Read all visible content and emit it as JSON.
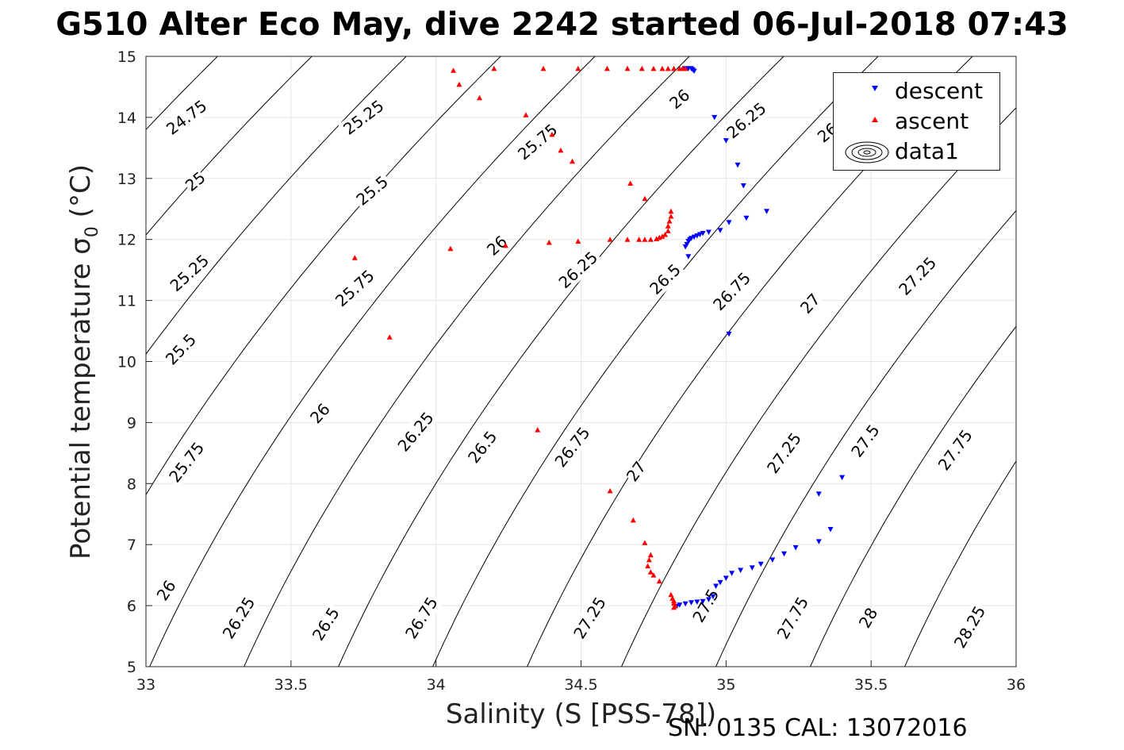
{
  "title": "G510 Alter Eco May, dive 2242 started 06-Jul-2018 07:43",
  "footer": "SN: 0135  CAL: 13072016",
  "chart_data": {
    "type": "scatter",
    "xlabel": "Salinity (S [PSS-78])",
    "ylabel": "Potential temperature",
    "ylabel_symbol": "σ",
    "ylabel_subscript": "0",
    "ylabel_unit": "(°C)",
    "xlim": [
      33,
      36
    ],
    "ylim": [
      5,
      15
    ],
    "xticks": [
      "33",
      "33.5",
      "34",
      "34.5",
      "35",
      "35.5",
      "36"
    ],
    "yticks": [
      "5",
      "6",
      "7",
      "8",
      "9",
      "10",
      "11",
      "12",
      "13",
      "14",
      "15"
    ],
    "grid": true,
    "legend_position": "top-right",
    "legend": [
      "descent",
      "ascent",
      "data1"
    ],
    "colors": {
      "descent": "#0000ff",
      "ascent": "#ff0000",
      "contour": "#000000",
      "grid": "#e6e6e6"
    },
    "contour_levels": [
      24.75,
      25,
      25.25,
      25.5,
      25.75,
      26,
      26.25,
      26.5,
      26.75,
      27,
      27.25,
      27.5,
      27.75,
      28,
      28.25
    ],
    "contour_labels": [
      {
        "text": "24.75",
        "x": 33.14,
        "y": 14.0,
        "angle": -37
      },
      {
        "text": "25.25",
        "x": 33.75,
        "y": 14.0,
        "angle": -37
      },
      {
        "text": "25",
        "x": 33.17,
        "y": 12.95,
        "angle": -40
      },
      {
        "text": "25.5",
        "x": 33.78,
        "y": 12.8,
        "angle": -40
      },
      {
        "text": "25.75",
        "x": 34.35,
        "y": 13.6,
        "angle": -40
      },
      {
        "text": "26",
        "x": 34.84,
        "y": 14.3,
        "angle": -40
      },
      {
        "text": "26.25",
        "x": 35.07,
        "y": 13.95,
        "angle": -40
      },
      {
        "text": "26",
        "x": 35.35,
        "y": 13.75,
        "angle": -40
      },
      {
        "text": "25.25",
        "x": 33.15,
        "y": 11.45,
        "angle": -42
      },
      {
        "text": "25.75",
        "x": 33.72,
        "y": 11.2,
        "angle": -42
      },
      {
        "text": "26",
        "x": 34.21,
        "y": 11.9,
        "angle": -42
      },
      {
        "text": "26.25",
        "x": 34.49,
        "y": 11.5,
        "angle": -42
      },
      {
        "text": "26.5",
        "x": 34.79,
        "y": 11.35,
        "angle": -44
      },
      {
        "text": "26.75",
        "x": 35.02,
        "y": 11.15,
        "angle": -46
      },
      {
        "text": "27",
        "x": 35.29,
        "y": 10.95,
        "angle": -48
      },
      {
        "text": "27.25",
        "x": 35.66,
        "y": 11.4,
        "angle": -46
      },
      {
        "text": "25.5",
        "x": 33.12,
        "y": 10.2,
        "angle": -46
      },
      {
        "text": "26",
        "x": 33.6,
        "y": 9.15,
        "angle": -48
      },
      {
        "text": "26.25",
        "x": 33.93,
        "y": 8.85,
        "angle": -50
      },
      {
        "text": "26.5",
        "x": 34.16,
        "y": 8.6,
        "angle": -52
      },
      {
        "text": "26.75",
        "x": 34.47,
        "y": 8.6,
        "angle": -52
      },
      {
        "text": "27",
        "x": 34.69,
        "y": 8.2,
        "angle": -54
      },
      {
        "text": "27.25",
        "x": 35.2,
        "y": 8.5,
        "angle": -54
      },
      {
        "text": "27.5",
        "x": 35.48,
        "y": 8.7,
        "angle": -54
      },
      {
        "text": "27.75",
        "x": 35.79,
        "y": 8.55,
        "angle": -54
      },
      {
        "text": "25.75",
        "x": 33.14,
        "y": 8.35,
        "angle": -52
      },
      {
        "text": "26",
        "x": 33.07,
        "y": 6.25,
        "angle": -56
      },
      {
        "text": "26.25",
        "x": 33.32,
        "y": 5.8,
        "angle": -58
      },
      {
        "text": "26.5",
        "x": 33.62,
        "y": 5.7,
        "angle": -58
      },
      {
        "text": "26.75",
        "x": 33.95,
        "y": 5.8,
        "angle": -58
      },
      {
        "text": "27.25",
        "x": 34.53,
        "y": 5.8,
        "angle": -58
      },
      {
        "text": "27.5",
        "x": 34.93,
        "y": 6.0,
        "angle": -60
      },
      {
        "text": "27.75",
        "x": 35.23,
        "y": 5.8,
        "angle": -60
      },
      {
        "text": "28",
        "x": 35.49,
        "y": 5.8,
        "angle": -60
      },
      {
        "text": "28.25",
        "x": 35.84,
        "y": 5.65,
        "angle": -60
      }
    ],
    "series": [
      {
        "name": "descent",
        "marker": "triangle-down",
        "points": [
          [
            34.86,
            14.8
          ],
          [
            34.87,
            14.8
          ],
          [
            34.88,
            14.8
          ],
          [
            34.885,
            14.78
          ],
          [
            34.89,
            14.76
          ],
          [
            34.96,
            14.0
          ],
          [
            35.0,
            13.62
          ],
          [
            35.04,
            13.22
          ],
          [
            35.06,
            12.88
          ],
          [
            35.14,
            12.46
          ],
          [
            35.07,
            12.35
          ],
          [
            35.01,
            12.28
          ],
          [
            34.98,
            12.15
          ],
          [
            34.94,
            12.12
          ],
          [
            34.92,
            12.1
          ],
          [
            34.91,
            12.08
          ],
          [
            34.9,
            12.06
          ],
          [
            34.89,
            12.04
          ],
          [
            34.88,
            12.02
          ],
          [
            34.875,
            12.0
          ],
          [
            34.87,
            11.97
          ],
          [
            34.865,
            11.92
          ],
          [
            34.86,
            11.88
          ],
          [
            34.87,
            11.72
          ],
          [
            35.01,
            10.45
          ],
          [
            35.4,
            8.1
          ],
          [
            35.32,
            7.83
          ],
          [
            35.36,
            7.25
          ],
          [
            35.32,
            7.05
          ],
          [
            35.24,
            6.95
          ],
          [
            35.2,
            6.85
          ],
          [
            35.16,
            6.75
          ],
          [
            35.12,
            6.68
          ],
          [
            35.09,
            6.62
          ],
          [
            35.05,
            6.58
          ],
          [
            35.02,
            6.53
          ],
          [
            35.0,
            6.45
          ],
          [
            34.98,
            6.38
          ],
          [
            34.965,
            6.32
          ],
          [
            34.955,
            6.15
          ],
          [
            34.94,
            6.1
          ],
          [
            34.92,
            6.07
          ],
          [
            34.9,
            6.06
          ],
          [
            34.88,
            6.05
          ],
          [
            34.86,
            6.03
          ],
          [
            34.84,
            6.01
          ],
          [
            34.83,
            5.99
          ]
        ]
      },
      {
        "name": "ascent",
        "marker": "triangle-up",
        "points": [
          [
            34.06,
            14.77
          ],
          [
            34.2,
            14.8
          ],
          [
            34.37,
            14.8
          ],
          [
            34.49,
            14.8
          ],
          [
            34.59,
            14.8
          ],
          [
            34.66,
            14.8
          ],
          [
            34.71,
            14.8
          ],
          [
            34.75,
            14.8
          ],
          [
            34.78,
            14.8
          ],
          [
            34.8,
            14.8
          ],
          [
            34.82,
            14.8
          ],
          [
            34.84,
            14.8
          ],
          [
            34.85,
            14.8
          ],
          [
            34.86,
            14.8
          ],
          [
            34.08,
            14.54
          ],
          [
            34.15,
            14.32
          ],
          [
            34.31,
            14.04
          ],
          [
            34.4,
            13.72
          ],
          [
            34.43,
            13.46
          ],
          [
            34.47,
            13.28
          ],
          [
            34.67,
            12.92
          ],
          [
            34.72,
            12.67
          ],
          [
            34.81,
            12.46
          ],
          [
            34.81,
            12.38
          ],
          [
            34.805,
            12.3
          ],
          [
            34.8,
            12.22
          ],
          [
            34.8,
            12.14
          ],
          [
            34.79,
            12.08
          ],
          [
            34.78,
            12.05
          ],
          [
            34.77,
            12.03
          ],
          [
            34.76,
            12.01
          ],
          [
            34.74,
            12.0
          ],
          [
            34.72,
            12.0
          ],
          [
            34.7,
            12.0
          ],
          [
            34.66,
            12.0
          ],
          [
            34.6,
            12.0
          ],
          [
            34.49,
            11.97
          ],
          [
            34.39,
            11.95
          ],
          [
            34.24,
            11.9
          ],
          [
            34.05,
            11.85
          ],
          [
            33.72,
            11.7
          ],
          [
            33.84,
            10.4
          ],
          [
            34.35,
            8.88
          ],
          [
            34.6,
            7.88
          ],
          [
            34.68,
            7.4
          ],
          [
            34.72,
            7.03
          ],
          [
            34.74,
            6.83
          ],
          [
            34.735,
            6.75
          ],
          [
            34.73,
            6.65
          ],
          [
            34.74,
            6.55
          ],
          [
            34.75,
            6.5
          ],
          [
            34.77,
            6.4
          ],
          [
            34.81,
            6.18
          ],
          [
            34.815,
            6.12
          ],
          [
            34.82,
            6.08
          ],
          [
            34.82,
            6.04
          ],
          [
            34.825,
            6.0
          ],
          [
            34.82,
            5.97
          ]
        ]
      }
    ]
  }
}
